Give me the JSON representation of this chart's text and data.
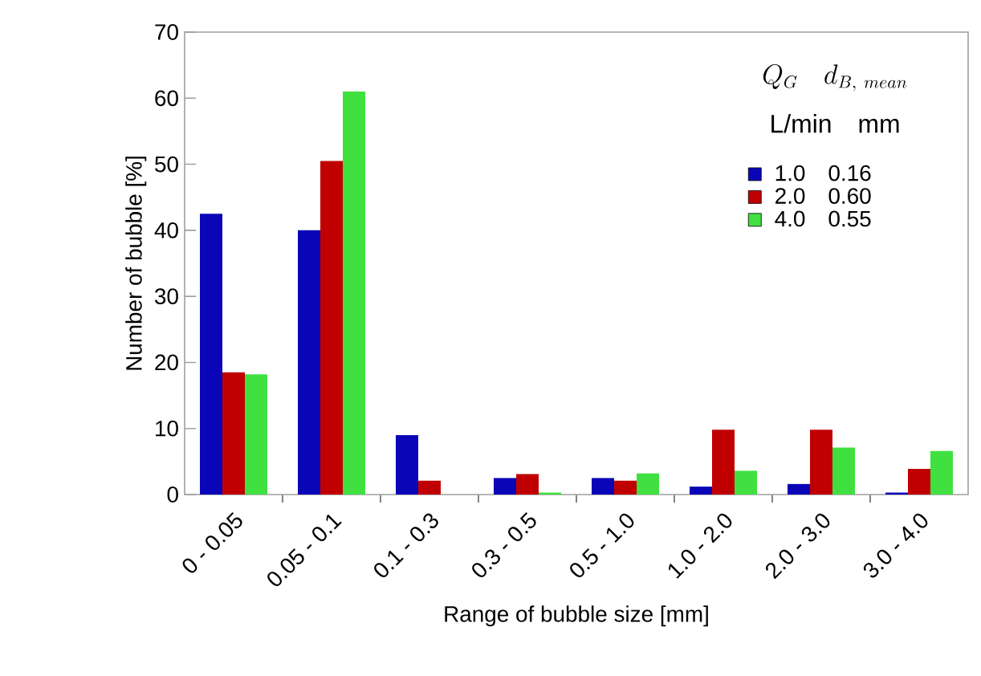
{
  "chart_data": {
    "type": "bar",
    "xlabel": "Range of bubble size  [mm]",
    "ylabel": "Number of bubble  [%]",
    "legend_title": "Q_{G}\\quad d_{B,\\ mean}",
    "annotations": [
      "L/min   mm"
    ],
    "categories": [
      "0 - 0.05",
      "0.05 - 0.1",
      "0.1 - 0.3",
      "0.3 - 0.5",
      "0.5 - 1.0",
      "1.0 - 2.0",
      "2.0 - 3.0",
      "3.0 - 4.0"
    ],
    "series": [
      {
        "name": "1.0    0.16",
        "color": "#0a06b8",
        "values": [
          42.5,
          40,
          9,
          2.5,
          2.5,
          1.2,
          1.6,
          0.3
        ]
      },
      {
        "name": "2.0    0.60",
        "color": "#c00000",
        "values": [
          18.5,
          50.5,
          2.1,
          3.1,
          2.1,
          9.8,
          9.8,
          3.9
        ]
      },
      {
        "name": "4.0    0.55",
        "color": "#40e040",
        "values": [
          18.2,
          61,
          0,
          0.3,
          3.2,
          3.6,
          7.1,
          6.6
        ]
      }
    ],
    "ylim": [
      0,
      70
    ],
    "yticks": [
      0,
      10,
      20,
      30,
      40,
      50,
      60,
      70
    ],
    "legend": "top right",
    "grid": false
  }
}
